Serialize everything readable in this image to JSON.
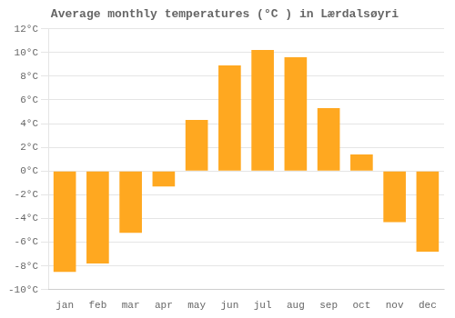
{
  "chart_data": {
    "type": "bar",
    "title": "Average monthly temperatures (°C ) in Lærdalsøyri",
    "categories": [
      "jan",
      "feb",
      "mar",
      "apr",
      "may",
      "jun",
      "jul",
      "aug",
      "sep",
      "oct",
      "nov",
      "dec"
    ],
    "values": [
      -8.5,
      -7.8,
      -5.2,
      -1.3,
      4.3,
      8.9,
      10.2,
      9.6,
      5.3,
      1.4,
      -4.3,
      -6.8
    ],
    "color": "#FFA820",
    "ylim": [
      -10,
      12
    ],
    "yticks": [
      {
        "value": -10,
        "label": "-10°C"
      },
      {
        "value": -8,
        "label": "-8°C"
      },
      {
        "value": -6,
        "label": "-6°C"
      },
      {
        "value": -4,
        "label": "-4°C"
      },
      {
        "value": -2,
        "label": "-2°C"
      },
      {
        "value": 0,
        "label": "0°C"
      },
      {
        "value": 2,
        "label": "2°C"
      },
      {
        "value": 4,
        "label": "4°C"
      },
      {
        "value": 6,
        "label": "6°C"
      },
      {
        "value": 8,
        "label": "8°C"
      },
      {
        "value": 10,
        "label": "10°C"
      },
      {
        "value": 12,
        "label": "12°C"
      }
    ],
    "grid": true
  }
}
